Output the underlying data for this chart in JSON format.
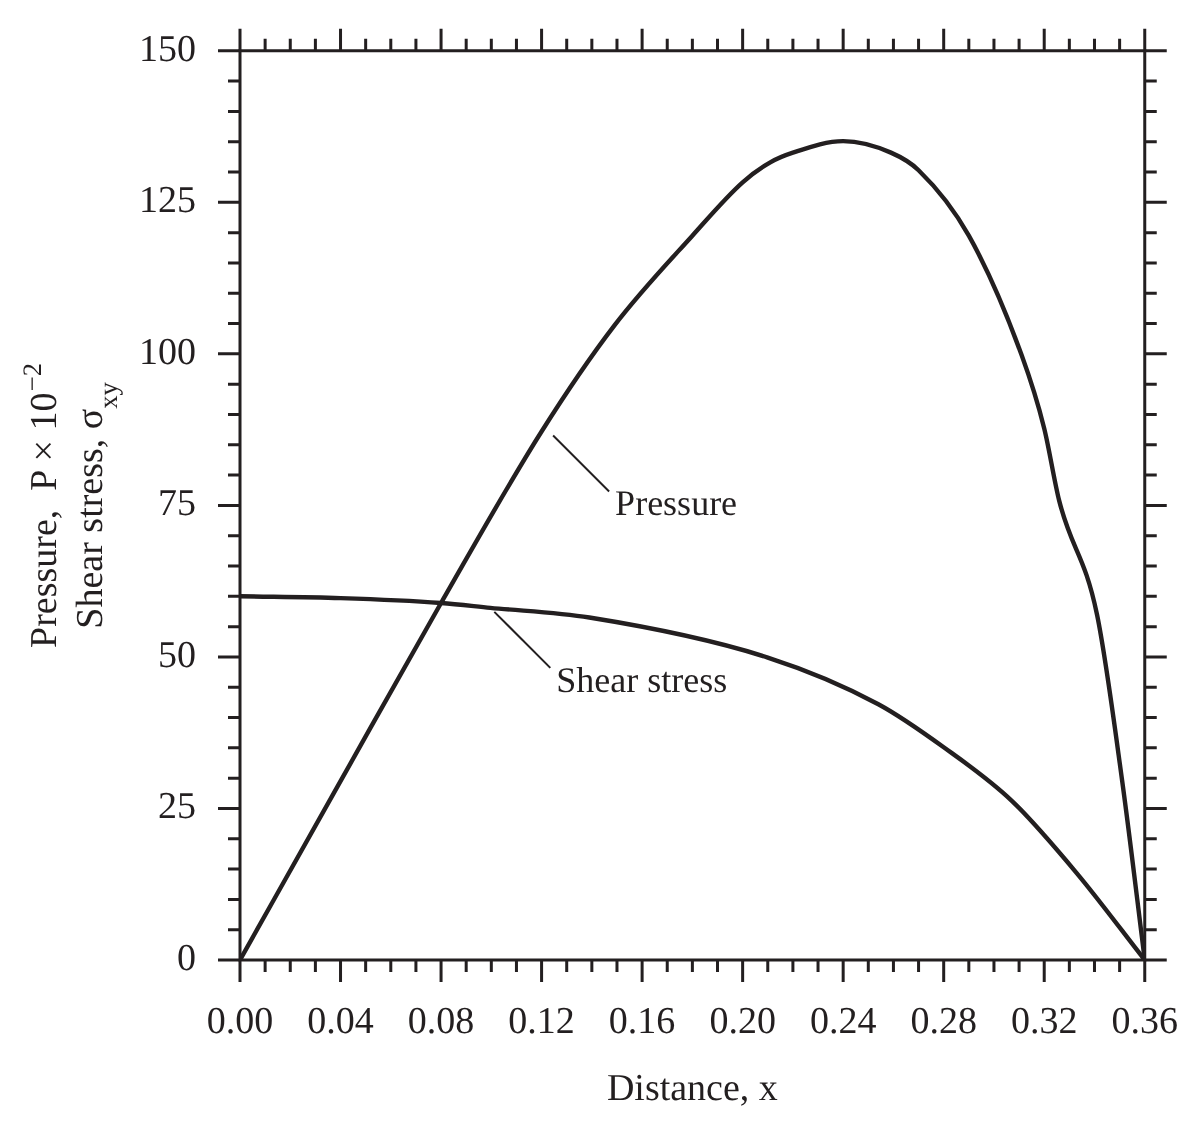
{
  "chart_data": {
    "type": "line",
    "xlabel": "Distance, x",
    "ylabel": "Pressure,  P × 10$^{−2}$\nShear stress, σ$_{xy}$",
    "series": [
      {
        "color": "#231f20",
        "x": [
          0,
          0.04,
          0.08,
          0.12,
          0.149,
          0.18,
          0.2,
          0.211,
          0.22,
          0.24,
          0.259,
          0.27,
          0.29,
          0.311,
          0.32,
          0.326,
          0.341,
          0.351,
          0.36
        ],
        "values": [
          0,
          29.5,
          58.9,
          87.2,
          104.7,
          119.5,
          128.3,
          131.6,
          133.2,
          135.1,
          133.2,
          130.3,
          119.5,
          99.8,
          87.7,
          75.7,
          57,
          29.6,
          0
        ]
      },
      {
        "color": "#231f20",
        "x": [
          0,
          0.04,
          0.08,
          0.0996,
          0.139,
          0.21,
          0.254,
          0.28,
          0.307,
          0.333,
          0.36
        ],
        "values": [
          60,
          59.7,
          58.9,
          58.1,
          56.5,
          49.9,
          42.2,
          35.1,
          26.3,
          14.3,
          0
        ]
      }
    ],
    "annotations": [
      {
        "text": "Pressure",
        "x": 0.123,
        "y": 87.2
      },
      {
        "text": "Shear stress",
        "x": 0.0996,
        "y": 58.1
      }
    ],
    "xlim": [
      0,
      0.36
    ],
    "xticks": [
      {
        "value": 0,
        "label": "0.00"
      },
      {
        "value": 0.01,
        "label": null
      },
      {
        "value": 0.02,
        "label": null
      },
      {
        "value": 0.03,
        "label": null
      },
      {
        "value": 0.04,
        "label": "0.04"
      },
      {
        "value": 0.05,
        "label": null
      },
      {
        "value": 0.06,
        "label": null
      },
      {
        "value": 0.07,
        "label": null
      },
      {
        "value": 0.08,
        "label": "0.08"
      },
      {
        "value": 0.09,
        "label": null
      },
      {
        "value": 0.1,
        "label": null
      },
      {
        "value": 0.11,
        "label": null
      },
      {
        "value": 0.12,
        "label": "0.12"
      },
      {
        "value": 0.13,
        "label": null
      },
      {
        "value": 0.14,
        "label": null
      },
      {
        "value": 0.15,
        "label": null
      },
      {
        "value": 0.16,
        "label": "0.16"
      },
      {
        "value": 0.17,
        "label": null
      },
      {
        "value": 0.18,
        "label": null
      },
      {
        "value": 0.19,
        "label": null
      },
      {
        "value": 0.2,
        "label": "0.20"
      },
      {
        "value": 0.21,
        "label": null
      },
      {
        "value": 0.22,
        "label": null
      },
      {
        "value": 0.23,
        "label": null
      },
      {
        "value": 0.24,
        "label": "0.24"
      },
      {
        "value": 0.25,
        "label": null
      },
      {
        "value": 0.26,
        "label": null
      },
      {
        "value": 0.27,
        "label": null
      },
      {
        "value": 0.28,
        "label": "0.28"
      },
      {
        "value": 0.29,
        "label": null
      },
      {
        "value": 0.3,
        "label": null
      },
      {
        "value": 0.31,
        "label": null
      },
      {
        "value": 0.32,
        "label": "0.32"
      },
      {
        "value": 0.33,
        "label": null
      },
      {
        "value": 0.34,
        "label": null
      },
      {
        "value": 0.35,
        "label": null
      },
      {
        "value": 0.36,
        "label": "0.36"
      }
    ],
    "ylim": [
      0,
      150
    ],
    "yticks": [
      0,
      {
        "value": 5,
        "label": null
      },
      {
        "value": 10,
        "label": null
      },
      {
        "value": 15,
        "label": null
      },
      {
        "value": 20,
        "label": null
      },
      25,
      {
        "value": 30,
        "label": null
      },
      {
        "value": 35,
        "label": null
      },
      {
        "value": 40,
        "label": null
      },
      {
        "value": 45,
        "label": null
      },
      50,
      {
        "value": 55,
        "label": null
      },
      {
        "value": 60,
        "label": null
      },
      {
        "value": 65,
        "label": null
      },
      {
        "value": 70,
        "label": null
      },
      75,
      {
        "value": 80,
        "label": null
      },
      {
        "value": 85,
        "label": null
      },
      {
        "value": 90,
        "label": null
      },
      {
        "value": 95,
        "label": null
      },
      100,
      {
        "value": 105,
        "label": null
      },
      {
        "value": 110,
        "label": null
      },
      {
        "value": 115,
        "label": null
      },
      {
        "value": 120,
        "label": null
      },
      125,
      {
        "value": 130,
        "label": null
      },
      {
        "value": 135,
        "label": null
      },
      {
        "value": 140,
        "label": null
      },
      {
        "value": 145,
        "label": null
      },
      150
    ],
    "grid": false,
    "legend": false,
    "marker": "none",
    "line_style": "solid"
  }
}
